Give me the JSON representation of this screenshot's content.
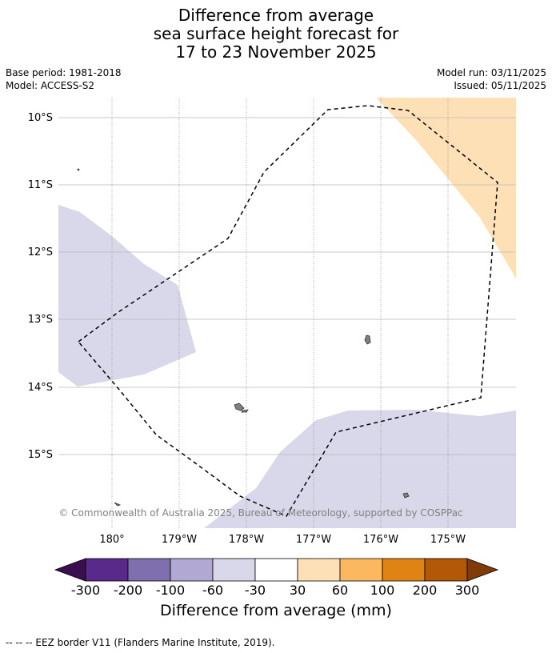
{
  "title": {
    "line1": "Difference from average",
    "line2": "sea surface height forecast for",
    "line3": "17 to 23 November 2025"
  },
  "meta": {
    "base_period": "Base period: 1981-2018",
    "model": "Model: ACCESS-S2",
    "model_run": "Model run: 03/11/2025",
    "issued": "Issued: 05/11/2025"
  },
  "map": {
    "lat_labels": [
      "10°S",
      "11°S",
      "12°S",
      "13°S",
      "14°S",
      "15°S"
    ],
    "lon_labels": [
      "180°",
      "179°W",
      "178°W",
      "177°W",
      "176°W",
      "175°W"
    ],
    "copyright": "© Commonwealth of Australia 2025, Bureau of Meteorology, supported by COSPPac"
  },
  "colorbar": {
    "title": "Difference from average (mm)",
    "tick_labels": [
      "-300",
      "-200",
      "-100",
      "-60",
      "-30",
      "30",
      "60",
      "100",
      "200",
      "300"
    ],
    "colors": [
      "#3b0f4f",
      "#5a2a8a",
      "#7f6faf",
      "#b1a9d3",
      "#d8d8ea",
      "#ffffff",
      "#fee0b6",
      "#fbb85f",
      "#e08315",
      "#b35806",
      "#7f3b08"
    ]
  },
  "legend": {
    "eez": "--  --  -- EEZ border V11 (Flanders Marine Institute, 2019)."
  }
}
